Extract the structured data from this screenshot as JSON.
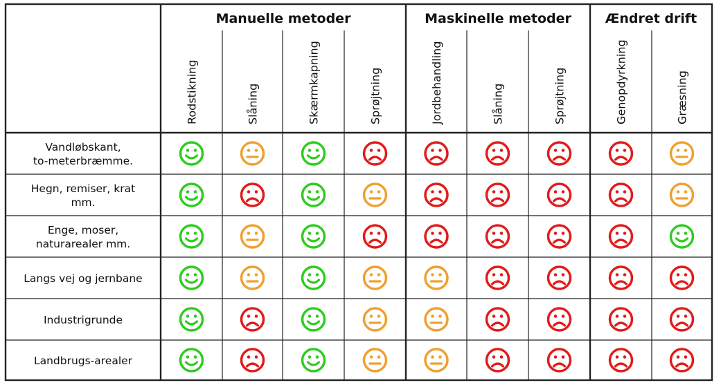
{
  "groups": [
    {
      "title": "Manuelle metoder",
      "span": 4
    },
    {
      "title": "Maskinelle metoder",
      "span": 3
    },
    {
      "title": "Ændret drift",
      "span": 2
    }
  ],
  "methods": [
    "Rodstikning",
    "Slåning",
    "Skærmkapning",
    "Sprøjtning",
    "Jordbehandling",
    "Slåning",
    "Sprøjtning",
    "Genopdyrkning",
    "Græsning"
  ],
  "rows": [
    {
      "label": [
        "Vandløbskant,",
        "to-meterbræmme."
      ],
      "ratings": [
        "happy",
        "neutral",
        "happy",
        "sad",
        "sad",
        "sad",
        "sad",
        "sad",
        "neutral"
      ]
    },
    {
      "label": [
        "Hegn, remiser, krat",
        "mm."
      ],
      "ratings": [
        "happy",
        "sad",
        "happy",
        "neutral",
        "sad",
        "sad",
        "sad",
        "sad",
        "neutral"
      ]
    },
    {
      "label": [
        "Enge, moser,",
        "naturarealer mm."
      ],
      "ratings": [
        "happy",
        "neutral",
        "happy",
        "sad",
        "sad",
        "sad",
        "sad",
        "sad",
        "happy"
      ]
    },
    {
      "label": [
        "Langs vej og jernbane"
      ],
      "ratings": [
        "happy",
        "neutral",
        "happy",
        "neutral",
        "neutral",
        "sad",
        "sad",
        "sad",
        "sad"
      ]
    },
    {
      "label": [
        "Industrigrunde"
      ],
      "ratings": [
        "happy",
        "sad",
        "happy",
        "neutral",
        "neutral",
        "sad",
        "sad",
        "sad",
        "sad"
      ]
    },
    {
      "label": [
        "Landbrugs-arealer"
      ],
      "ratings": [
        "happy",
        "sad",
        "happy",
        "neutral",
        "neutral",
        "sad",
        "sad",
        "sad",
        "sad"
      ]
    }
  ],
  "icons": {
    "happy": {
      "name": "smiley-happy-icon",
      "color": "#2ecc1f"
    },
    "neutral": {
      "name": "smiley-neutral-icon",
      "color": "#f0a030"
    },
    "sad": {
      "name": "smiley-sad-icon",
      "color": "#e11b1b"
    }
  }
}
